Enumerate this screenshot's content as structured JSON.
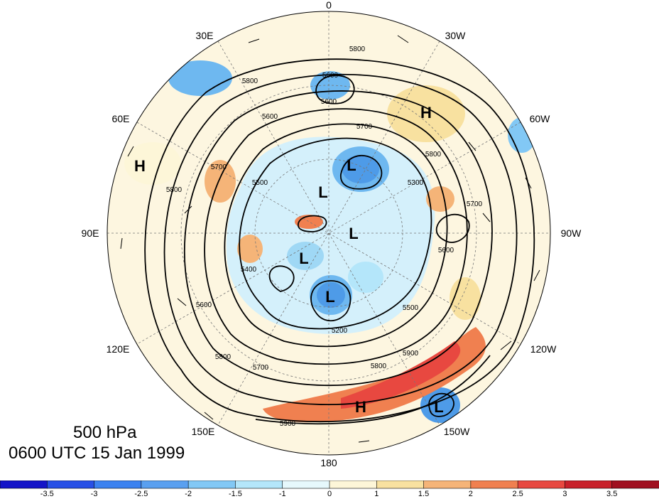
{
  "title": {
    "level": "500 hPa",
    "time": "0600 UTC 15 Jan 1999"
  },
  "longitude_labels": [
    {
      "key": "0",
      "text": "0"
    },
    {
      "key": "30W",
      "text": "30W"
    },
    {
      "key": "60W",
      "text": "60W"
    },
    {
      "key": "90W",
      "text": "90W"
    },
    {
      "key": "120W",
      "text": "120W"
    },
    {
      "key": "150W",
      "text": "150W"
    },
    {
      "key": "180",
      "text": "180"
    },
    {
      "key": "150E",
      "text": "150E"
    },
    {
      "key": "120E",
      "text": "120E"
    },
    {
      "key": "90E",
      "text": "90E"
    },
    {
      "key": "60E",
      "text": "60E"
    },
    {
      "key": "30E",
      "text": "30E"
    }
  ],
  "pressure_centers": [
    "H",
    "L",
    "L",
    "L",
    "L",
    "L",
    "H",
    "L",
    "H"
  ],
  "contour_labels": [
    "5800",
    "5600",
    "5600",
    "5800",
    "5700",
    "5600",
    "5700",
    "5500",
    "5800",
    "5400",
    "5600",
    "5700",
    "5800",
    "5900",
    "5500",
    "5300",
    "5200",
    "5600",
    "5800",
    "5900",
    "5800",
    "5700"
  ],
  "colorbar": {
    "ticks": [
      "-3.5",
      "-3",
      "-2.5",
      "-2",
      "-1.5",
      "-1",
      "0",
      "1",
      "1.5",
      "2",
      "2.5",
      "3",
      "3.5"
    ],
    "colors": [
      "#1414c8",
      "#2850e6",
      "#3c82f0",
      "#5aa0f0",
      "#82c8f5",
      "#b4e6fa",
      "#e6f8fc",
      "#fdf6d8",
      "#f8e1a0",
      "#f5b478",
      "#f08050",
      "#e84840",
      "#c8202a",
      "#a01020"
    ]
  }
}
